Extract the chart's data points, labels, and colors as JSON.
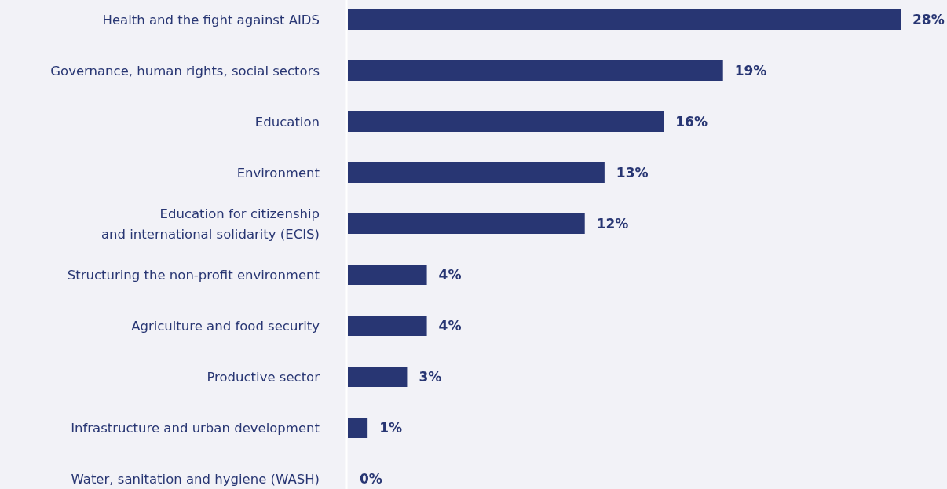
{
  "chart_data": {
    "type": "bar",
    "orientation": "horizontal",
    "categories": [
      "Health and the fight against AIDS",
      "Governance, human rights, social sectors",
      "Education",
      "Environment",
      "Education for citizenship\nand international solidarity (ECIS)",
      "Structuring the non-profit environment",
      "Agriculture and food security",
      "Productive sector",
      "Infrastructure and urban development",
      "Water, sanitation and hygiene (WASH)"
    ],
    "values": [
      28,
      19,
      16,
      13,
      12,
      4,
      4,
      3,
      1,
      0
    ],
    "value_labels": [
      "28%",
      "19%",
      "16%",
      "13%",
      "12%",
      "4%",
      "4%",
      "3%",
      "1%",
      "0%"
    ],
    "color": "#283673",
    "tick_labels": "y"
  }
}
